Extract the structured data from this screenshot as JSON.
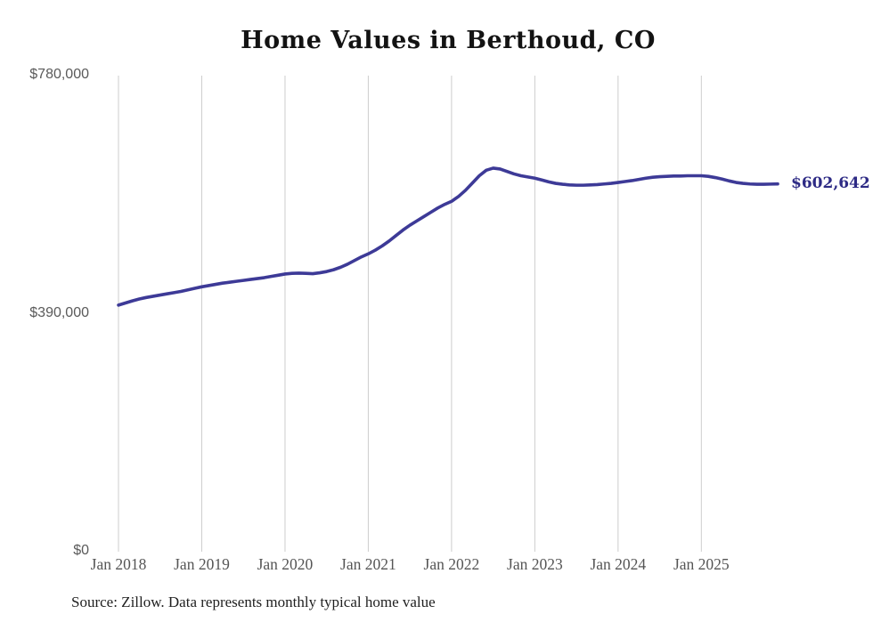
{
  "chart_data": {
    "type": "line",
    "title": "Home Values in Berthoud, CO",
    "source_note": "Source: Zillow. Data represents monthly typical home value",
    "series_name": "Typical home value (monthly)",
    "end_label": "$602,642",
    "end_value": 602642,
    "x": [
      "2018-01",
      "2018-02",
      "2018-03",
      "2018-04",
      "2018-05",
      "2018-06",
      "2018-07",
      "2018-08",
      "2018-09",
      "2018-10",
      "2018-11",
      "2018-12",
      "2019-01",
      "2019-02",
      "2019-03",
      "2019-04",
      "2019-05",
      "2019-06",
      "2019-07",
      "2019-08",
      "2019-09",
      "2019-10",
      "2019-11",
      "2019-12",
      "2020-01",
      "2020-02",
      "2020-03",
      "2020-04",
      "2020-05",
      "2020-06",
      "2020-07",
      "2020-08",
      "2020-09",
      "2020-10",
      "2020-11",
      "2020-12",
      "2021-01",
      "2021-02",
      "2021-03",
      "2021-04",
      "2021-05",
      "2021-06",
      "2021-07",
      "2021-08",
      "2021-09",
      "2021-10",
      "2021-11",
      "2021-12",
      "2022-01",
      "2022-02",
      "2022-03",
      "2022-04",
      "2022-05",
      "2022-06",
      "2022-07",
      "2022-08",
      "2022-09",
      "2022-10",
      "2022-11",
      "2022-12",
      "2023-01",
      "2023-02",
      "2023-03",
      "2023-04",
      "2023-05",
      "2023-06",
      "2023-07",
      "2023-08",
      "2023-09",
      "2023-10",
      "2023-11",
      "2023-12",
      "2024-01",
      "2024-02",
      "2024-03",
      "2024-04",
      "2024-05",
      "2024-06",
      "2024-07",
      "2024-08",
      "2024-09",
      "2024-10",
      "2024-11",
      "2024-12",
      "2025-01",
      "2025-02",
      "2025-03",
      "2025-04",
      "2025-05",
      "2025-06",
      "2025-07",
      "2025-08",
      "2025-09",
      "2025-10",
      "2025-11",
      "2025-12"
    ],
    "values": [
      404000,
      407500,
      411000,
      414000,
      416500,
      418500,
      420500,
      422500,
      424500,
      426500,
      429000,
      431500,
      434000,
      436000,
      438000,
      440000,
      441500,
      443000,
      444500,
      446000,
      447500,
      449000,
      451000,
      453000,
      455000,
      456000,
      456500,
      456000,
      455500,
      457000,
      459000,
      462000,
      466000,
      471000,
      477000,
      483000,
      488000,
      494000,
      501000,
      509000,
      518000,
      527000,
      535000,
      542000,
      549000,
      556000,
      563000,
      569000,
      574000,
      582000,
      592000,
      604000,
      616000,
      625000,
      628500,
      627000,
      623000,
      619000,
      616000,
      614000,
      612000,
      609000,
      606000,
      603500,
      602000,
      601000,
      600500,
      600500,
      601000,
      601500,
      602500,
      603500,
      605000,
      606500,
      608000,
      610000,
      612000,
      613500,
      614500,
      615000,
      615500,
      615500,
      616000,
      616000,
      616000,
      615000,
      613000,
      610500,
      607500,
      605000,
      603500,
      602500,
      602000,
      602000,
      602300,
      602642
    ],
    "x_tick_labels": [
      "Jan 2018",
      "Jan 2019",
      "Jan 2020",
      "Jan 2021",
      "Jan 2022",
      "Jan 2023",
      "Jan 2024",
      "Jan 2025"
    ],
    "x_tick_indices": [
      0,
      12,
      24,
      36,
      48,
      60,
      72,
      84
    ],
    "y_tick_labels": [
      "$0",
      "$390,000",
      "$780,000"
    ],
    "y_tick_values": [
      0,
      390000,
      780000
    ],
    "ylim": [
      0,
      780000
    ],
    "grid": "vertical-yearly-only",
    "legend": "none",
    "colors": {
      "line": "#3d3a97",
      "end_label": "#2e2b85",
      "gridline": "#cdcdcd",
      "y_axis_text": "#5a5a5a",
      "x_axis_text": "#555555",
      "title": "#131313",
      "source": "#1f1f1f",
      "background": "#ffffff"
    }
  }
}
